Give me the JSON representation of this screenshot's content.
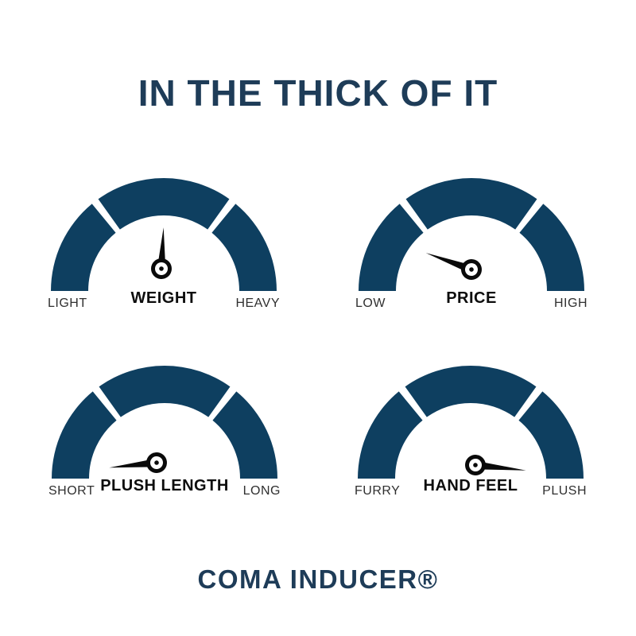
{
  "title": "IN THE THICK OF IT",
  "footer": "COMA INDUCER®",
  "colors": {
    "background": "#ffffff",
    "arc": "#0e3f60",
    "heading": "#1e3c58",
    "needle": "#0a0a0a",
    "side_label": "#2f2f2f",
    "center_label": "#0d0d0d"
  },
  "chart_data": {
    "type": "gauge",
    "title": "IN THE THICK OF IT",
    "layout": "2x2 grid of semicircular 3-segment dial gauges",
    "scale": {
      "min_angle_deg": 180,
      "max_angle_deg": 0,
      "segments": 3
    },
    "gauges": [
      {
        "id": "weight",
        "title": "WEIGHT",
        "min_label": "LIGHT",
        "max_label": "HEAVY",
        "needle_angle_deg": 87,
        "reading_pct": 52
      },
      {
        "id": "price",
        "title": "PRICE",
        "min_label": "LOW",
        "max_label": "HIGH",
        "needle_angle_deg": 160,
        "reading_pct": 11
      },
      {
        "id": "plush-length",
        "title": "PLUSH LENGTH",
        "min_label": "SHORT",
        "max_label": "LONG",
        "needle_angle_deg": 186,
        "reading_pct": 0
      },
      {
        "id": "hand-feel",
        "title": "HAND FEEL",
        "min_label": "FURRY",
        "max_label": "PLUSH",
        "needle_angle_deg": -6,
        "reading_pct": 100
      }
    ]
  }
}
